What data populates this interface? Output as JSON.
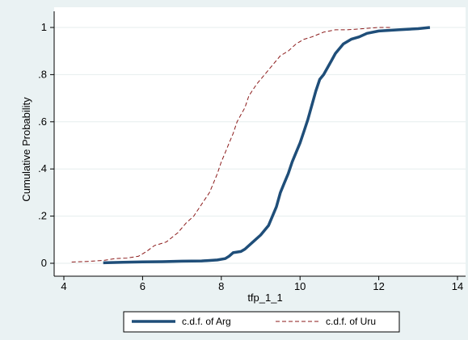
{
  "chart_data": {
    "type": "line",
    "title": "",
    "xlabel": "tfp_1_1",
    "ylabel": "Cumulative Probability",
    "xlim": [
      4,
      14
    ],
    "ylim": [
      0,
      1
    ],
    "x_ticks": [
      4,
      6,
      8,
      10,
      12,
      14
    ],
    "x_tick_labels": [
      "4",
      "6",
      "8",
      "10",
      "12",
      "14"
    ],
    "y_ticks": [
      0,
      0.2,
      0.4,
      0.6,
      0.8,
      1
    ],
    "y_tick_labels": [
      "0",
      ".2",
      ".4",
      ".6",
      ".8",
      "1"
    ],
    "grid": "horizontal",
    "legend_position": "bottom",
    "series": [
      {
        "name": "c.d.f. of Arg",
        "style": "solid-thick",
        "color": "#1f4e79",
        "x": [
          5.0,
          5.5,
          6.0,
          6.5,
          7.0,
          7.5,
          7.9,
          8.1,
          8.2,
          8.3,
          8.5,
          8.6,
          8.8,
          9.0,
          9.2,
          9.4,
          9.5,
          9.6,
          9.7,
          9.8,
          9.9,
          10.0,
          10.1,
          10.2,
          10.3,
          10.4,
          10.5,
          10.6,
          10.7,
          10.8,
          10.9,
          11.0,
          11.1,
          11.3,
          11.5,
          11.7,
          12.0,
          12.5,
          13.0,
          13.3
        ],
        "y": [
          0.002,
          0.004,
          0.006,
          0.007,
          0.009,
          0.01,
          0.014,
          0.02,
          0.03,
          0.045,
          0.05,
          0.06,
          0.09,
          0.12,
          0.16,
          0.24,
          0.3,
          0.34,
          0.38,
          0.43,
          0.47,
          0.51,
          0.56,
          0.61,
          0.67,
          0.73,
          0.78,
          0.8,
          0.83,
          0.86,
          0.89,
          0.91,
          0.93,
          0.95,
          0.96,
          0.975,
          0.985,
          0.99,
          0.995,
          1.0
        ]
      },
      {
        "name": "c.d.f. of Uru",
        "style": "dashed-thin",
        "color": "#8b1a1a",
        "x": [
          4.2,
          4.6,
          5.0,
          5.3,
          5.6,
          5.9,
          6.1,
          6.3,
          6.6,
          6.9,
          7.1,
          7.3,
          7.5,
          7.7,
          7.8,
          7.9,
          8.0,
          8.1,
          8.2,
          8.3,
          8.4,
          8.5,
          8.6,
          8.7,
          8.9,
          9.1,
          9.3,
          9.5,
          9.7,
          9.9,
          10.1,
          10.3,
          10.6,
          10.9,
          11.2,
          11.6,
          12.0,
          12.3
        ],
        "y": [
          0.005,
          0.008,
          0.012,
          0.02,
          0.022,
          0.03,
          0.05,
          0.075,
          0.09,
          0.13,
          0.17,
          0.2,
          0.25,
          0.3,
          0.34,
          0.38,
          0.43,
          0.47,
          0.51,
          0.55,
          0.6,
          0.63,
          0.66,
          0.71,
          0.76,
          0.8,
          0.84,
          0.88,
          0.9,
          0.93,
          0.95,
          0.96,
          0.98,
          0.99,
          0.99,
          0.995,
          1.0,
          1.0
        ]
      }
    ]
  }
}
